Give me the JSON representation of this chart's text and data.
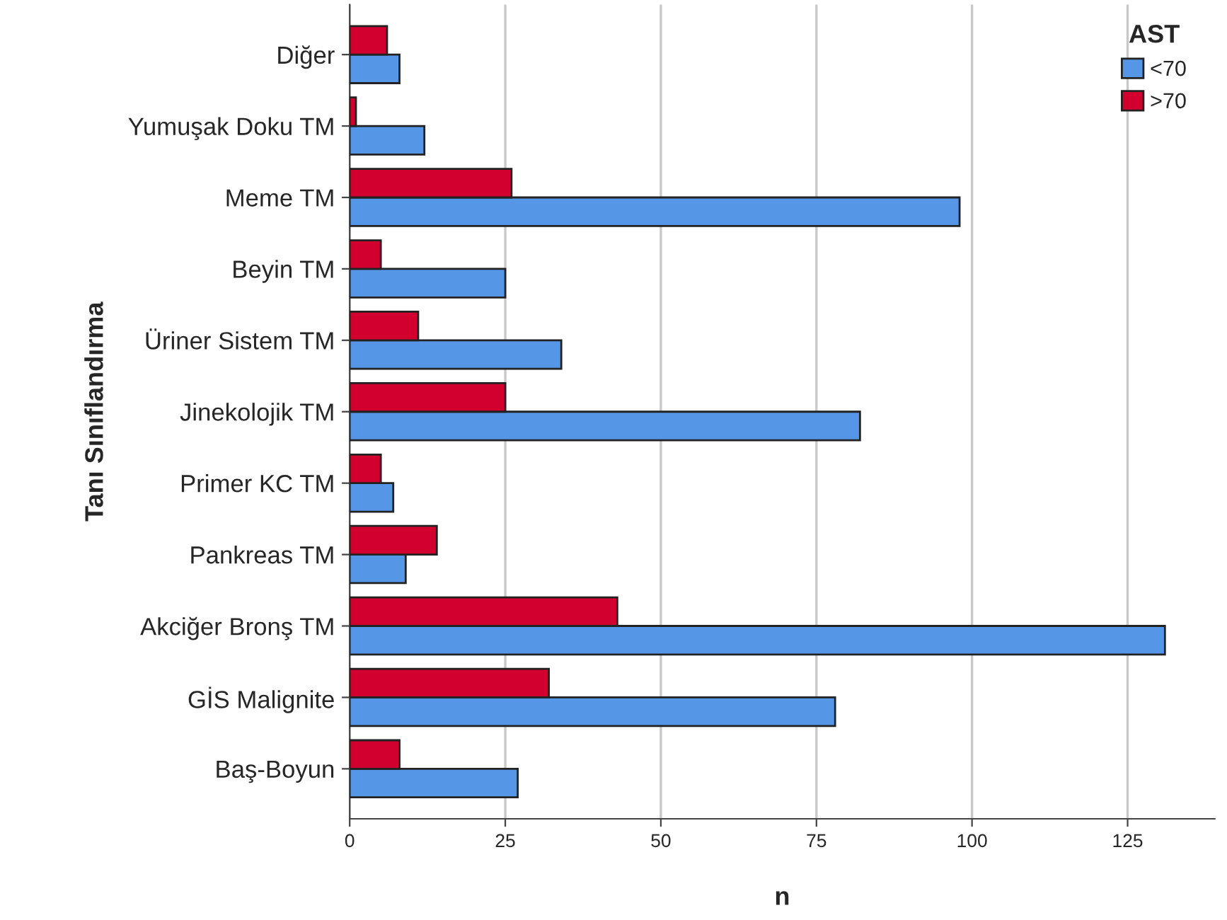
{
  "chart_data": {
    "type": "bar",
    "orientation": "horizontal",
    "xlabel": "n",
    "ylabel": "Tanı Sınıflandırma",
    "legend_title": "AST",
    "legend": "top right",
    "grid": "x",
    "categories": [
      "Diğer",
      "Yumuşak Doku TM",
      "Meme TM",
      "Beyin TM",
      "Üriner Sistem TM",
      "Jinekolojik TM",
      "Primer KC TM",
      "Pankreas TM",
      "Akciğer Bronş TM",
      "GİS Malignite",
      "Baş-Boyun"
    ],
    "series": [
      {
        "name": "<70",
        "color": "#5596e6",
        "values": [
          8,
          12,
          98,
          25,
          34,
          82,
          7,
          9,
          131,
          78,
          27
        ]
      },
      {
        "name": ">70",
        "color": "#d2002e",
        "values": [
          6,
          1,
          26,
          5,
          11,
          25,
          5,
          14,
          43,
          32,
          8
        ]
      }
    ],
    "xlim": [
      0,
      139
    ],
    "xticks": [
      0,
      25,
      50,
      75,
      100,
      125
    ]
  }
}
